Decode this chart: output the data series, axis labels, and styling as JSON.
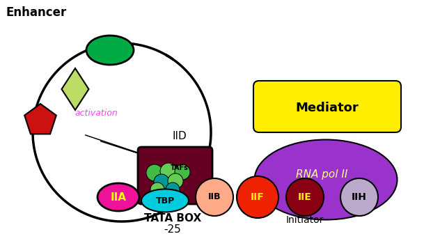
{
  "bg_color": "#ffffff",
  "enhancer_label": "Enhancer",
  "activation_label": "activation",
  "iid_label": "IID",
  "tafs_label": "TAFs",
  "tbp_label": "TBP",
  "tata_box_label": "TATA BOX",
  "minus25_label": "-25",
  "initiator_label": "Initiator",
  "mediator_label": "Mediator",
  "rnapol_label": "RNA pol II",
  "iia_label": "IIA",
  "iib_label": "IIB",
  "iif_label": "IIF",
  "iie_label": "IIE",
  "iih_label": "IIH",
  "green_oval": "#00aa44",
  "light_green_diamond": "#bbdd66",
  "red_pentagon": "#cc1111",
  "magenta_activation": "#ff44ff",
  "dark_maroon_tata": "#660022",
  "cyan_tbp": "#00ccdd",
  "green_taf1": "#44bb44",
  "green_taf2": "#66cc55",
  "teal_taf": "#009999",
  "magenta_iia": "#ee1199",
  "iia_text": "#ffff00",
  "salmon_iib": "#ffaa88",
  "red_iif": "#ee2200",
  "iif_text": "#ffee00",
  "dark_red_iie": "#880011",
  "iie_text": "#ffee00",
  "lavender_iih": "#bbaacc",
  "purple_rnapol": "#9933cc",
  "rnapol_text": "#ffff88",
  "yellow_mediator": "#ffee00",
  "black": "#000000",
  "white": "#ffffff"
}
